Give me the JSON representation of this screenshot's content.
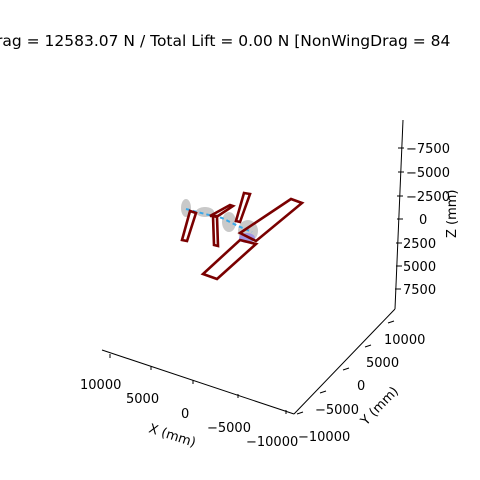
{
  "chart_data": {
    "type": "scatter",
    "title": "rag = 12583.07 N / Total Lift = 0.00 N [NonWingDrag = 84",
    "xlabel": "X (mm)",
    "ylabel": "Y (mm)",
    "zlabel": "Z (mm)",
    "x_ticks": [
      "10000",
      "5000",
      "0",
      "−5000",
      "−10000"
    ],
    "y_ticks": [
      "10000",
      "5000",
      "0",
      "−5000",
      "−10000"
    ],
    "z_ticks": [
      "−7500",
      "−5000",
      "−2500",
      "0",
      "2500",
      "5000",
      "7500"
    ],
    "z_inverted": true,
    "grid": false,
    "colors": {
      "wing_outline": "#7a0000",
      "fuselage": "#c9c9c9",
      "centerline": "#3aa8e8",
      "nacelle": "#9a8ce8"
    }
  }
}
